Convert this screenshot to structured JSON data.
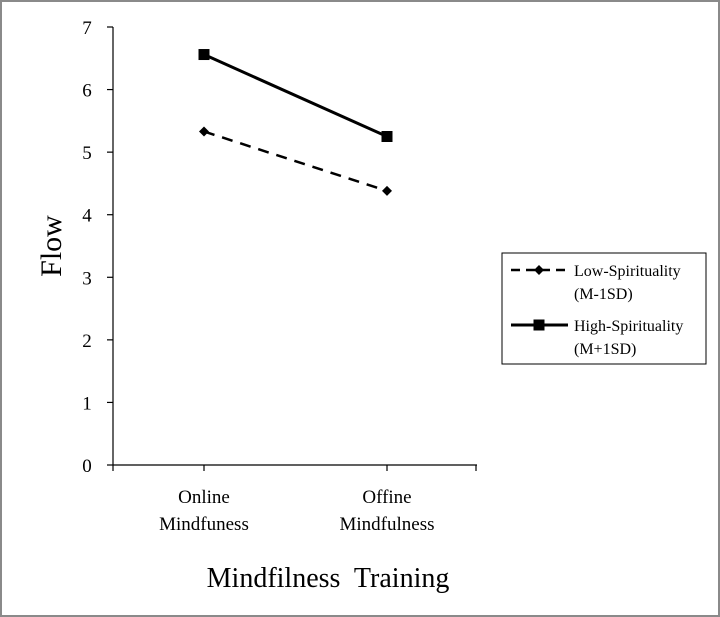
{
  "chart_data": {
    "type": "line",
    "title": "",
    "xlabel": "Mindfilness  Training",
    "ylabel": "Flow",
    "ylim": [
      0,
      7
    ],
    "yticks": [
      "0",
      "1",
      "2",
      "3",
      "4",
      "5",
      "6",
      "7"
    ],
    "categories": [
      [
        "Online",
        "Mindfuness"
      ],
      [
        "Offine",
        "Mindfulness"
      ]
    ],
    "series": [
      {
        "name": [
          "Low-Spirituality",
          "(M-1SD)"
        ],
        "values": [
          5.33,
          4.38
        ],
        "line_style": "dashed",
        "marker": "diamond",
        "color": "#000000"
      },
      {
        "name": [
          "High-Spirituality",
          "(M+1SD)"
        ],
        "values": [
          6.56,
          5.25
        ],
        "line_style": "solid",
        "marker": "square",
        "color": "#000000"
      }
    ],
    "legend_position": "right",
    "grid": false
  }
}
